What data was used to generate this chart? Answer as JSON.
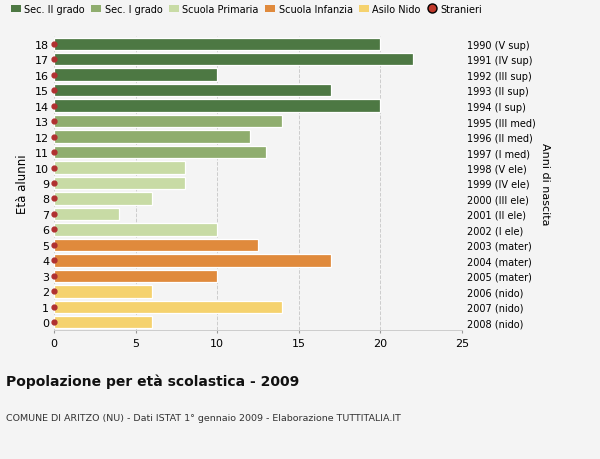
{
  "ages": [
    0,
    1,
    2,
    3,
    4,
    5,
    6,
    7,
    8,
    9,
    10,
    11,
    12,
    13,
    14,
    15,
    16,
    17,
    18
  ],
  "values": [
    6,
    14,
    6,
    10,
    17,
    12.5,
    10,
    4,
    6,
    8,
    8,
    13,
    12,
    14,
    20,
    17,
    10,
    22,
    20
  ],
  "right_labels": [
    "2008 (nido)",
    "2007 (nido)",
    "2006 (nido)",
    "2005 (mater)",
    "2004 (mater)",
    "2003 (mater)",
    "2002 (I ele)",
    "2001 (II ele)",
    "2000 (III ele)",
    "1999 (IV ele)",
    "1998 (V ele)",
    "1997 (I med)",
    "1996 (II med)",
    "1995 (III med)",
    "1994 (I sup)",
    "1993 (II sup)",
    "1992 (III sup)",
    "1991 (IV sup)",
    "1990 (V sup)"
  ],
  "bar_colors": [
    "#f5d26e",
    "#f5d26e",
    "#f5d26e",
    "#e08a3c",
    "#e08a3c",
    "#e08a3c",
    "#c8dba5",
    "#c8dba5",
    "#c8dba5",
    "#c8dba5",
    "#c8dba5",
    "#8fad6e",
    "#8fad6e",
    "#8fad6e",
    "#4d7843",
    "#4d7843",
    "#4d7843",
    "#4d7843",
    "#4d7843"
  ],
  "legend_labels": [
    "Sec. II grado",
    "Sec. I grado",
    "Scuola Primaria",
    "Scuola Infanzia",
    "Asilo Nido",
    "Stranieri"
  ],
  "legend_colors": [
    "#4d7843",
    "#8fad6e",
    "#c8dba5",
    "#e08a3c",
    "#f5d26e",
    "#c0392b"
  ],
  "title": "Popolazione per età scolastica - 2009",
  "subtitle": "COMUNE DI ARITZO (NU) - Dati ISTAT 1° gennaio 2009 - Elaborazione TUTTITALIA.IT",
  "ylabel": "Età alunni",
  "ylabel_right": "Anni di nascita",
  "xlim": [
    0,
    25
  ],
  "xticks": [
    0,
    5,
    10,
    15,
    20,
    25
  ],
  "bg_color": "#f4f4f4",
  "grid_color": "#cccccc",
  "dot_color": "#b03030"
}
